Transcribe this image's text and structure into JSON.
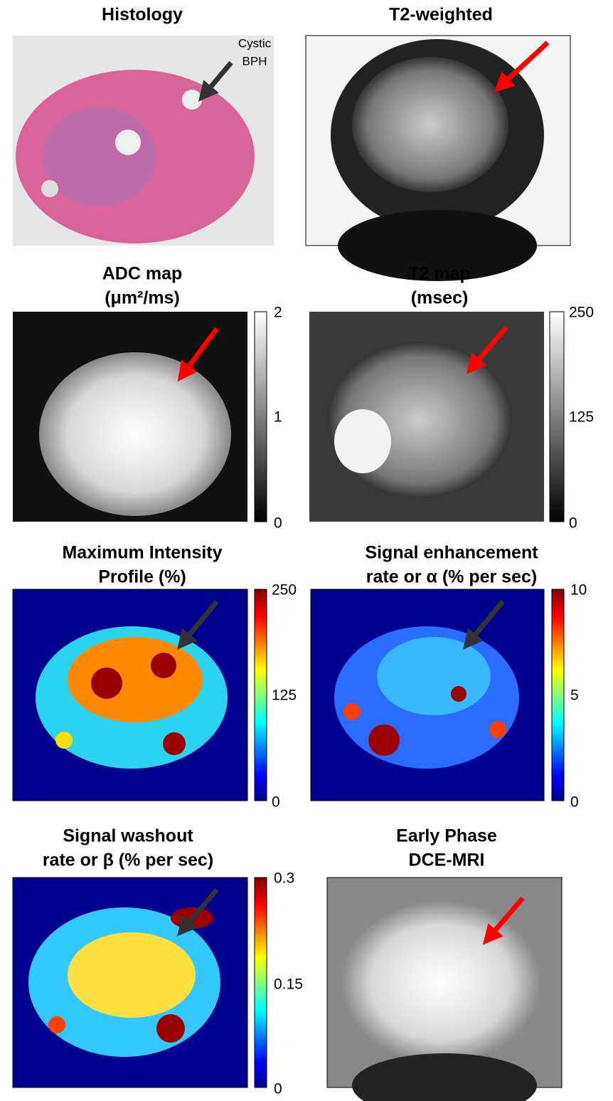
{
  "panels": [
    {
      "title": [
        "Histology"
      ],
      "annotation": [
        "Cystic",
        "BPH"
      ]
    },
    {
      "title": [
        "T2-weighted"
      ]
    },
    {
      "title": [
        "ADC map",
        "(μm²/ms)"
      ],
      "colorbar_ticks": [
        "2",
        "1",
        "0"
      ]
    },
    {
      "title": [
        "T2 map",
        "(msec)"
      ],
      "colorbar_ticks": [
        "250",
        "125",
        "0"
      ]
    },
    {
      "title": [
        "Maximum Intensity",
        "Profile (%)"
      ],
      "colorbar_ticks": [
        "250",
        "125",
        "0"
      ]
    },
    {
      "title": [
        "Signal enhancement",
        "rate or α (% per sec)"
      ],
      "colorbar_ticks": [
        "10",
        "5",
        "0"
      ]
    },
    {
      "title": [
        "Signal washout",
        "rate or β (% per sec)"
      ],
      "colorbar_ticks": [
        "0.3",
        "0.15",
        "0"
      ]
    },
    {
      "title": [
        "Early Phase",
        "DCE-MRI"
      ]
    }
  ]
}
